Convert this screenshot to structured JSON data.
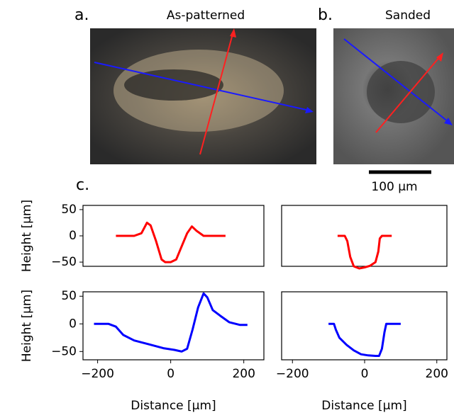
{
  "panels": {
    "a_label": "a.",
    "a_title": "As-patterned",
    "b_label": "b.",
    "b_title": "Sanded",
    "scale_bar": "100 µm",
    "c_label": "c."
  },
  "chart_data": [
    {
      "type": "line",
      "color": "#ff0000",
      "x": [
        -150,
        -100,
        -80,
        -65,
        -55,
        -40,
        -25,
        -15,
        0,
        15,
        30,
        45,
        58,
        70,
        90,
        150
      ],
      "values": [
        0,
        0,
        5,
        25,
        20,
        -10,
        -45,
        -50,
        -50,
        -45,
        -20,
        5,
        18,
        10,
        0,
        0
      ],
      "xlim": [
        -240,
        255
      ],
      "ylim": [
        -58,
        58
      ],
      "yticks": [
        50,
        0,
        {
          "value": -50,
          "label": "−50"
        }
      ],
      "ylabel": "Height [µm]"
    },
    {
      "type": "line",
      "color": "#ff0000",
      "x": [
        -75,
        -55,
        -48,
        -40,
        -30,
        -15,
        0,
        15,
        30,
        38,
        42,
        48,
        75
      ],
      "values": [
        0,
        0,
        -10,
        -40,
        -58,
        -62,
        -60,
        -57,
        -50,
        -30,
        -5,
        0,
        0
      ],
      "xlim": [
        -230,
        228
      ],
      "ylim": [
        -58,
        58
      ]
    },
    {
      "type": "line",
      "color": "#0000ff",
      "x": [
        -210,
        -170,
        -150,
        -130,
        -100,
        -60,
        -20,
        10,
        30,
        45,
        60,
        75,
        90,
        100,
        115,
        135,
        160,
        190,
        210
      ],
      "values": [
        0,
        0,
        -5,
        -20,
        -30,
        -37,
        -44,
        -47,
        -50,
        -45,
        -10,
        30,
        55,
        48,
        25,
        15,
        3,
        -2,
        -2
      ],
      "xlim": [
        -240,
        255
      ],
      "ylim": [
        -65,
        58
      ],
      "yticks": [
        50,
        0,
        {
          "value": -50,
          "label": "−50"
        }
      ],
      "xticks": [
        {
          "value": -200,
          "label": "−200"
        },
        0,
        200
      ],
      "ylabel": "Height [µm]",
      "xlabel": "Distance [µm]"
    },
    {
      "type": "line",
      "color": "#0000ff",
      "x": [
        -100,
        -85,
        -80,
        -70,
        -50,
        -30,
        -10,
        10,
        30,
        40,
        48,
        55,
        60,
        100
      ],
      "values": [
        0,
        0,
        -10,
        -25,
        -38,
        -48,
        -55,
        -57,
        -58,
        -58,
        -45,
        -15,
        0,
        0
      ],
      "xlim": [
        -230,
        228
      ],
      "ylim": [
        -65,
        58
      ],
      "xticks": [
        {
          "value": -200,
          "label": "−200"
        },
        0,
        200
      ],
      "xlabel": "Distance [µm]"
    }
  ]
}
